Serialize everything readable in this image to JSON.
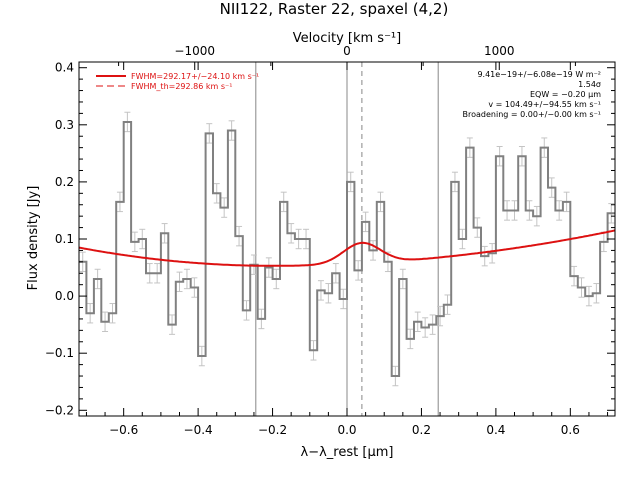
{
  "chart_data": {
    "type": "line",
    "title": "NII122, Raster 22, spaxel (4,2)",
    "xlabel": "λ−λ_rest [μm]",
    "ylabel": "Flux density [Jy]",
    "top_xlabel": "Velocity [km s⁻¹]",
    "xlim": [
      -0.72,
      0.72
    ],
    "ylim": [
      -0.21,
      0.41
    ],
    "top_xlim_kms": [
      -1760,
      1760
    ],
    "xticks": [
      -0.6,
      -0.4,
      -0.2,
      0.0,
      0.2,
      0.4,
      0.6
    ],
    "xtick_labels": [
      "−0.6",
      "−0.4",
      "−0.2",
      "0.0",
      "0.2",
      "0.4",
      "0.6"
    ],
    "yticks": [
      -0.2,
      -0.1,
      0.0,
      0.1,
      0.2,
      0.3,
      0.4
    ],
    "ytick_labels": [
      "−0.2",
      "−0.1",
      "0.0",
      "0.1",
      "0.2",
      "0.3",
      "0.4"
    ],
    "top_xticks_kms": [
      -1000,
      0,
      1000
    ],
    "top_xtick_labels": [
      "−1000",
      "0",
      "1000"
    ],
    "vertical_lines": [
      {
        "x": -0.245,
        "style": "solid"
      },
      {
        "x": 0.0,
        "style": "solid"
      },
      {
        "x": 0.04,
        "style": "dashed"
      },
      {
        "x": 0.245,
        "style": "solid"
      }
    ],
    "series": [
      {
        "kind": "step",
        "color": "#808080",
        "x": [
          -0.72,
          -0.7,
          -0.68,
          -0.66,
          -0.64,
          -0.62,
          -0.6,
          -0.58,
          -0.56,
          -0.54,
          -0.52,
          -0.5,
          -0.48,
          -0.46,
          -0.44,
          -0.42,
          -0.4,
          -0.38,
          -0.36,
          -0.34,
          -0.32,
          -0.3,
          -0.28,
          -0.26,
          -0.24,
          -0.22,
          -0.2,
          -0.18,
          -0.16,
          -0.14,
          -0.12,
          -0.1,
          -0.08,
          -0.06,
          -0.04,
          -0.02,
          0.0,
          0.02,
          0.04,
          0.06,
          0.08,
          0.1,
          0.12,
          0.14,
          0.16,
          0.18,
          0.2,
          0.22,
          0.24,
          0.26,
          0.28,
          0.3,
          0.32,
          0.34,
          0.36,
          0.38,
          0.4,
          0.42,
          0.44,
          0.46,
          0.48,
          0.5,
          0.52,
          0.54,
          0.56,
          0.58,
          0.6,
          0.62,
          0.64,
          0.66,
          0.68,
          0.7
        ],
        "values": [
          0.06,
          -0.03,
          0.03,
          -0.045,
          -0.03,
          0.165,
          0.305,
          0.095,
          0.1,
          0.04,
          0.04,
          0.11,
          -0.05,
          0.025,
          0.03,
          0.015,
          -0.105,
          0.285,
          0.18,
          0.155,
          0.29,
          0.105,
          -0.025,
          0.055,
          -0.04,
          0.05,
          0.03,
          0.165,
          0.11,
          0.1,
          0.1,
          -0.095,
          0.01,
          0.005,
          0.04,
          -0.005,
          0.2,
          0.045,
          0.13,
          0.08,
          0.165,
          0.06,
          -0.14,
          0.03,
          -0.075,
          -0.045,
          -0.055,
          -0.05,
          -0.035,
          -0.015,
          0.2,
          0.1,
          0.26,
          0.12,
          0.07,
          0.075,
          0.245,
          0.15,
          0.15,
          0.245,
          0.15,
          0.14,
          0.26,
          0.19,
          0.15,
          0.165,
          0.035,
          0.015,
          0.0,
          0.005,
          0.095,
          0.145
        ],
        "errors": [
          0.017,
          0.017,
          0.017,
          0.017,
          0.017,
          0.017,
          0.017,
          0.017,
          0.017,
          0.017,
          0.017,
          0.017,
          0.017,
          0.017,
          0.017,
          0.017,
          0.017,
          0.017,
          0.017,
          0.017,
          0.017,
          0.017,
          0.017,
          0.017,
          0.017,
          0.017,
          0.017,
          0.017,
          0.017,
          0.017,
          0.017,
          0.017,
          0.017,
          0.017,
          0.017,
          0.017,
          0.017,
          0.017,
          0.017,
          0.017,
          0.017,
          0.017,
          0.017,
          0.017,
          0.017,
          0.017,
          0.017,
          0.017,
          0.017,
          0.017,
          0.017,
          0.017,
          0.017,
          0.017,
          0.017,
          0.017,
          0.017,
          0.017,
          0.017,
          0.017,
          0.017,
          0.017,
          0.017,
          0.017,
          0.017,
          0.017,
          0.017,
          0.017,
          0.017,
          0.017,
          0.017,
          0.017
        ]
      },
      {
        "kind": "fit",
        "name": "FWHM=292.17+/-24.10 km s⁻¹",
        "color": "#dd1111",
        "baseline": {
          "at_left": 0.085,
          "min_x": -0.2,
          "min_y": 0.053,
          "at_right": 0.115
        },
        "gaussian": {
          "center": 0.04,
          "amplitude": 0.036,
          "sigma": 0.05
        }
      }
    ],
    "legend": {
      "placement": "top-left",
      "entries": [
        {
          "label": "FWHM=292.17+/−24.10 km s⁻¹",
          "style": "solid",
          "color": "#dd1111"
        },
        {
          "label": "FWHM_th=292.86 km s⁻¹",
          "style": "dashed",
          "color": "#dd1111"
        }
      ]
    },
    "annotations": [
      "9.41e−19+/−6.08e−19 W m⁻²",
      "1.54σ",
      "EQW = −0.20 μm",
      "v = 104.49+/−94.55 km s⁻¹",
      "Broadening = 0.00+/−0.00 km s⁻¹"
    ],
    "grid": false
  }
}
